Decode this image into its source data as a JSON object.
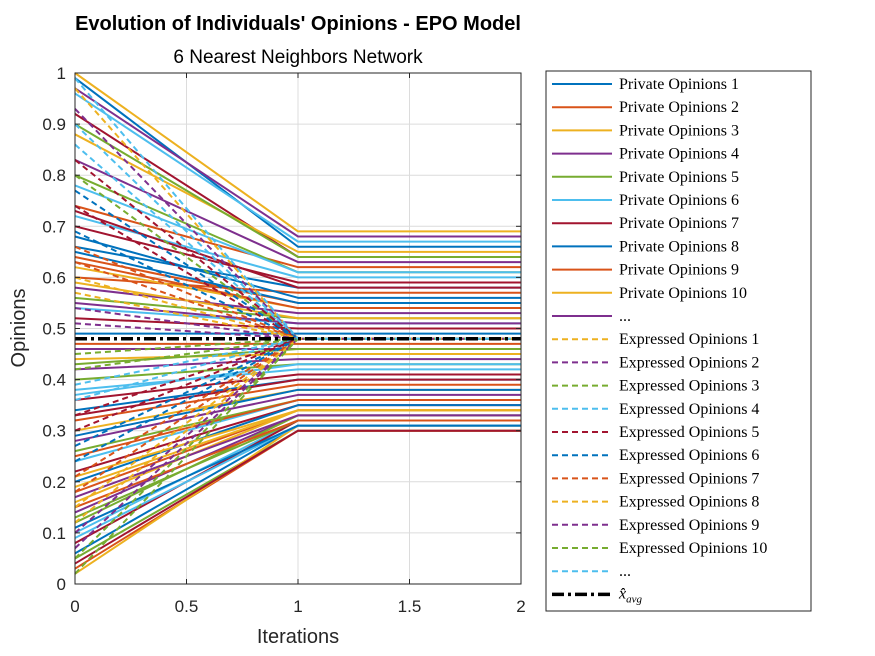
{
  "chart_data": {
    "type": "line",
    "title": "Evolution of Individuals' Opinions - EPO Model",
    "subtitle": "6 Nearest Neighbors Network",
    "xlabel": "Iterations",
    "ylabel": "Opinions",
    "xlim": [
      0,
      2
    ],
    "ylim": [
      0,
      1
    ],
    "xticks": [
      "0",
      "0.5",
      "1",
      "1.5",
      "2"
    ],
    "yticks": [
      "0",
      "0.1",
      "0.2",
      "0.3",
      "0.4",
      "0.5",
      "0.6",
      "0.7",
      "0.8",
      "0.9",
      "1"
    ],
    "grid": true,
    "legend_position": "outside-right",
    "x": [
      0,
      1,
      2
    ],
    "avg_value": 0.48,
    "colors": [
      "#0072BD",
      "#D95319",
      "#EDB120",
      "#7E2F8E",
      "#77AC30",
      "#4DBEEE",
      "#A2142F"
    ],
    "private_series": [
      {
        "name": "Private Opinions 1",
        "values": [
          0.99,
          0.66,
          0.66
        ]
      },
      {
        "name": "Private Opinions 2",
        "values": [
          0.6,
          0.57,
          0.57
        ]
      },
      {
        "name": "Private Opinions 3",
        "values": [
          1.0,
          0.69,
          0.69
        ]
      },
      {
        "name": "Private Opinions 4",
        "values": [
          0.46,
          0.46,
          0.46
        ]
      },
      {
        "name": "Private Opinions 5",
        "values": [
          0.05,
          0.3,
          0.3
        ]
      },
      {
        "name": "Private Opinions 6",
        "values": [
          0.96,
          0.67,
          0.67
        ]
      },
      {
        "name": "Private Opinions 7",
        "values": [
          0.92,
          0.64,
          0.64
        ]
      },
      {
        "name": "Private Opinions 8",
        "values": [
          0.68,
          0.56,
          0.56
        ]
      },
      {
        "name": "Private Opinions 9",
        "values": [
          0.74,
          0.62,
          0.62
        ]
      },
      {
        "name": "Private Opinions 10",
        "values": [
          0.88,
          0.65,
          0.65
        ]
      },
      {
        "values": [
          0.83,
          0.63,
          0.63
        ]
      },
      {
        "values": [
          0.8,
          0.61,
          0.61
        ]
      },
      {
        "values": [
          0.72,
          0.6,
          0.6
        ]
      },
      {
        "values": [
          0.7,
          0.59,
          0.59
        ]
      },
      {
        "values": [
          0.66,
          0.58,
          0.58
        ]
      },
      {
        "values": [
          0.64,
          0.55,
          0.55
        ]
      },
      {
        "values": [
          0.62,
          0.54,
          0.54
        ]
      },
      {
        "values": [
          0.58,
          0.53,
          0.53
        ]
      },
      {
        "values": [
          0.56,
          0.52,
          0.52
        ]
      },
      {
        "values": [
          0.54,
          0.51,
          0.51
        ]
      },
      {
        "values": [
          0.52,
          0.5,
          0.5
        ]
      },
      {
        "values": [
          0.49,
          0.49,
          0.49
        ]
      },
      {
        "values": [
          0.47,
          0.47,
          0.47
        ]
      },
      {
        "values": [
          0.44,
          0.45,
          0.45
        ]
      },
      {
        "values": [
          0.42,
          0.44,
          0.44
        ]
      },
      {
        "values": [
          0.4,
          0.43,
          0.43
        ]
      },
      {
        "values": [
          0.38,
          0.42,
          0.42
        ]
      },
      {
        "values": [
          0.36,
          0.41,
          0.41
        ]
      },
      {
        "values": [
          0.34,
          0.4,
          0.4
        ]
      },
      {
        "values": [
          0.32,
          0.39,
          0.39
        ]
      },
      {
        "values": [
          0.3,
          0.38,
          0.38
        ]
      },
      {
        "values": [
          0.28,
          0.37,
          0.37
        ]
      },
      {
        "values": [
          0.26,
          0.36,
          0.36
        ]
      },
      {
        "values": [
          0.24,
          0.36,
          0.36
        ]
      },
      {
        "values": [
          0.22,
          0.35,
          0.35
        ]
      },
      {
        "values": [
          0.2,
          0.35,
          0.35
        ]
      },
      {
        "values": [
          0.18,
          0.34,
          0.34
        ]
      },
      {
        "values": [
          0.16,
          0.34,
          0.34
        ]
      },
      {
        "values": [
          0.14,
          0.33,
          0.33
        ]
      },
      {
        "values": [
          0.12,
          0.33,
          0.33
        ]
      },
      {
        "values": [
          0.1,
          0.32,
          0.32
        ]
      },
      {
        "values": [
          0.08,
          0.32,
          0.32
        ]
      },
      {
        "values": [
          0.06,
          0.31,
          0.31
        ]
      },
      {
        "values": [
          0.03,
          0.3,
          0.3
        ]
      },
      {
        "values": [
          0.02,
          0.31,
          0.31
        ]
      },
      {
        "values": [
          0.97,
          0.68,
          0.68
        ]
      },
      {
        "values": [
          0.9,
          0.64,
          0.64
        ]
      },
      {
        "values": [
          0.78,
          0.61,
          0.61
        ]
      },
      {
        "values": [
          0.73,
          0.58,
          0.58
        ]
      },
      {
        "values": [
          0.65,
          0.55,
          0.55
        ]
      },
      {
        "values": [
          0.63,
          0.54,
          0.54
        ]
      },
      {
        "values": [
          0.59,
          0.52,
          0.52
        ]
      },
      {
        "values": [
          0.55,
          0.51,
          0.51
        ]
      },
      {
        "values": [
          0.43,
          0.46,
          0.46
        ]
      },
      {
        "values": [
          0.37,
          0.43,
          0.43
        ]
      },
      {
        "values": [
          0.33,
          0.4,
          0.4
        ]
      },
      {
        "values": [
          0.29,
          0.38,
          0.38
        ]
      },
      {
        "values": [
          0.25,
          0.36,
          0.36
        ]
      },
      {
        "values": [
          0.21,
          0.34,
          0.34
        ]
      },
      {
        "values": [
          0.17,
          0.33,
          0.33
        ]
      },
      {
        "values": [
          0.13,
          0.32,
          0.32
        ]
      },
      {
        "values": [
          0.09,
          0.31,
          0.31
        ]
      },
      {
        "values": [
          0.04,
          0.3,
          0.3
        ]
      },
      {
        "values": [
          0.11,
          0.31,
          0.31
        ]
      },
      {
        "values": [
          0.15,
          0.32,
          0.32
        ]
      },
      {
        "values": [
          0.19,
          0.34,
          0.34
        ]
      }
    ],
    "expressed_series": [
      {
        "name": "Expressed Opinions 1",
        "values": [
          0.97,
          0.48,
          0.48
        ]
      },
      {
        "name": "Expressed Opinions 2",
        "values": [
          0.93,
          0.48,
          0.48
        ]
      },
      {
        "name": "Expressed Opinions 3",
        "values": [
          0.8,
          0.48,
          0.48
        ]
      },
      {
        "name": "Expressed Opinions 4",
        "values": [
          0.86,
          0.48,
          0.48
        ]
      },
      {
        "name": "Expressed Opinions 5",
        "values": [
          0.74,
          0.48,
          0.48
        ]
      },
      {
        "name": "Expressed Opinions 6",
        "values": [
          0.69,
          0.48,
          0.48
        ]
      },
      {
        "name": "Expressed Opinions 7",
        "values": [
          0.63,
          0.48,
          0.48
        ]
      },
      {
        "name": "Expressed Opinions 8",
        "values": [
          0.57,
          0.48,
          0.48
        ]
      },
      {
        "name": "Expressed Opinions 9",
        "values": [
          0.51,
          0.48,
          0.48
        ]
      },
      {
        "name": "Expressed Opinions 10",
        "values": [
          0.45,
          0.48,
          0.48
        ]
      },
      {
        "values": [
          0.39,
          0.48,
          0.48
        ]
      },
      {
        "values": [
          0.33,
          0.48,
          0.48
        ]
      },
      {
        "values": [
          0.27,
          0.48,
          0.48
        ]
      },
      {
        "values": [
          0.21,
          0.48,
          0.48
        ]
      },
      {
        "values": [
          0.15,
          0.48,
          0.48
        ]
      },
      {
        "values": [
          0.1,
          0.48,
          0.48
        ]
      },
      {
        "values": [
          0.05,
          0.48,
          0.48
        ]
      },
      {
        "values": [
          0.9,
          0.48,
          0.48
        ]
      },
      {
        "values": [
          0.83,
          0.48,
          0.48
        ]
      },
      {
        "values": [
          0.77,
          0.48,
          0.48
        ]
      },
      {
        "values": [
          0.66,
          0.48,
          0.48
        ]
      },
      {
        "values": [
          0.6,
          0.48,
          0.48
        ]
      },
      {
        "values": [
          0.54,
          0.48,
          0.48
        ]
      },
      {
        "values": [
          0.42,
          0.48,
          0.48
        ]
      },
      {
        "values": [
          0.36,
          0.48,
          0.48
        ]
      },
      {
        "values": [
          0.3,
          0.48,
          0.48
        ]
      },
      {
        "values": [
          0.24,
          0.48,
          0.48
        ]
      },
      {
        "values": [
          0.18,
          0.48,
          0.48
        ]
      },
      {
        "values": [
          0.12,
          0.48,
          0.48
        ]
      },
      {
        "values": [
          0.07,
          0.48,
          0.48
        ]
      },
      {
        "values": [
          0.02,
          0.48,
          0.48
        ]
      },
      {
        "values": [
          0.99,
          0.48,
          0.48
        ]
      }
    ],
    "legend": {
      "entries": [
        {
          "label": "Private Opinions 1",
          "style": "solid",
          "color": "#0072BD"
        },
        {
          "label": "Private Opinions 2",
          "style": "solid",
          "color": "#D95319"
        },
        {
          "label": "Private Opinions 3",
          "style": "solid",
          "color": "#EDB120"
        },
        {
          "label": "Private Opinions 4",
          "style": "solid",
          "color": "#7E2F8E"
        },
        {
          "label": "Private Opinions 5",
          "style": "solid",
          "color": "#77AC30"
        },
        {
          "label": "Private Opinions 6",
          "style": "solid",
          "color": "#4DBEEE"
        },
        {
          "label": "Private Opinions 7",
          "style": "solid",
          "color": "#A2142F"
        },
        {
          "label": "Private Opinions 8",
          "style": "solid",
          "color": "#0072BD"
        },
        {
          "label": "Private Opinions 9",
          "style": "solid",
          "color": "#D95319"
        },
        {
          "label": "Private Opinions 10",
          "style": "solid",
          "color": "#EDB120"
        },
        {
          "label": "...",
          "style": "solid",
          "color": "#7E2F8E"
        },
        {
          "label": "Expressed Opinions 1",
          "style": "dashed",
          "color": "#EDB120"
        },
        {
          "label": "Expressed Opinions 2",
          "style": "dashed",
          "color": "#7E2F8E"
        },
        {
          "label": "Expressed Opinions 3",
          "style": "dashed",
          "color": "#77AC30"
        },
        {
          "label": "Expressed Opinions 4",
          "style": "dashed",
          "color": "#4DBEEE"
        },
        {
          "label": "Expressed Opinions 5",
          "style": "dashed",
          "color": "#A2142F"
        },
        {
          "label": "Expressed Opinions 6",
          "style": "dashed",
          "color": "#0072BD"
        },
        {
          "label": "Expressed Opinions 7",
          "style": "dashed",
          "color": "#D95319"
        },
        {
          "label": "Expressed Opinions 8",
          "style": "dashed",
          "color": "#EDB120"
        },
        {
          "label": "Expressed Opinions 9",
          "style": "dashed",
          "color": "#7E2F8E"
        },
        {
          "label": "Expressed Opinions 10",
          "style": "dashed",
          "color": "#77AC30"
        },
        {
          "label": "...",
          "style": "dashed",
          "color": "#4DBEEE"
        }
      ],
      "avg_label": "x̂",
      "avg_subscript": "avg",
      "avg_color": "#000000"
    }
  }
}
